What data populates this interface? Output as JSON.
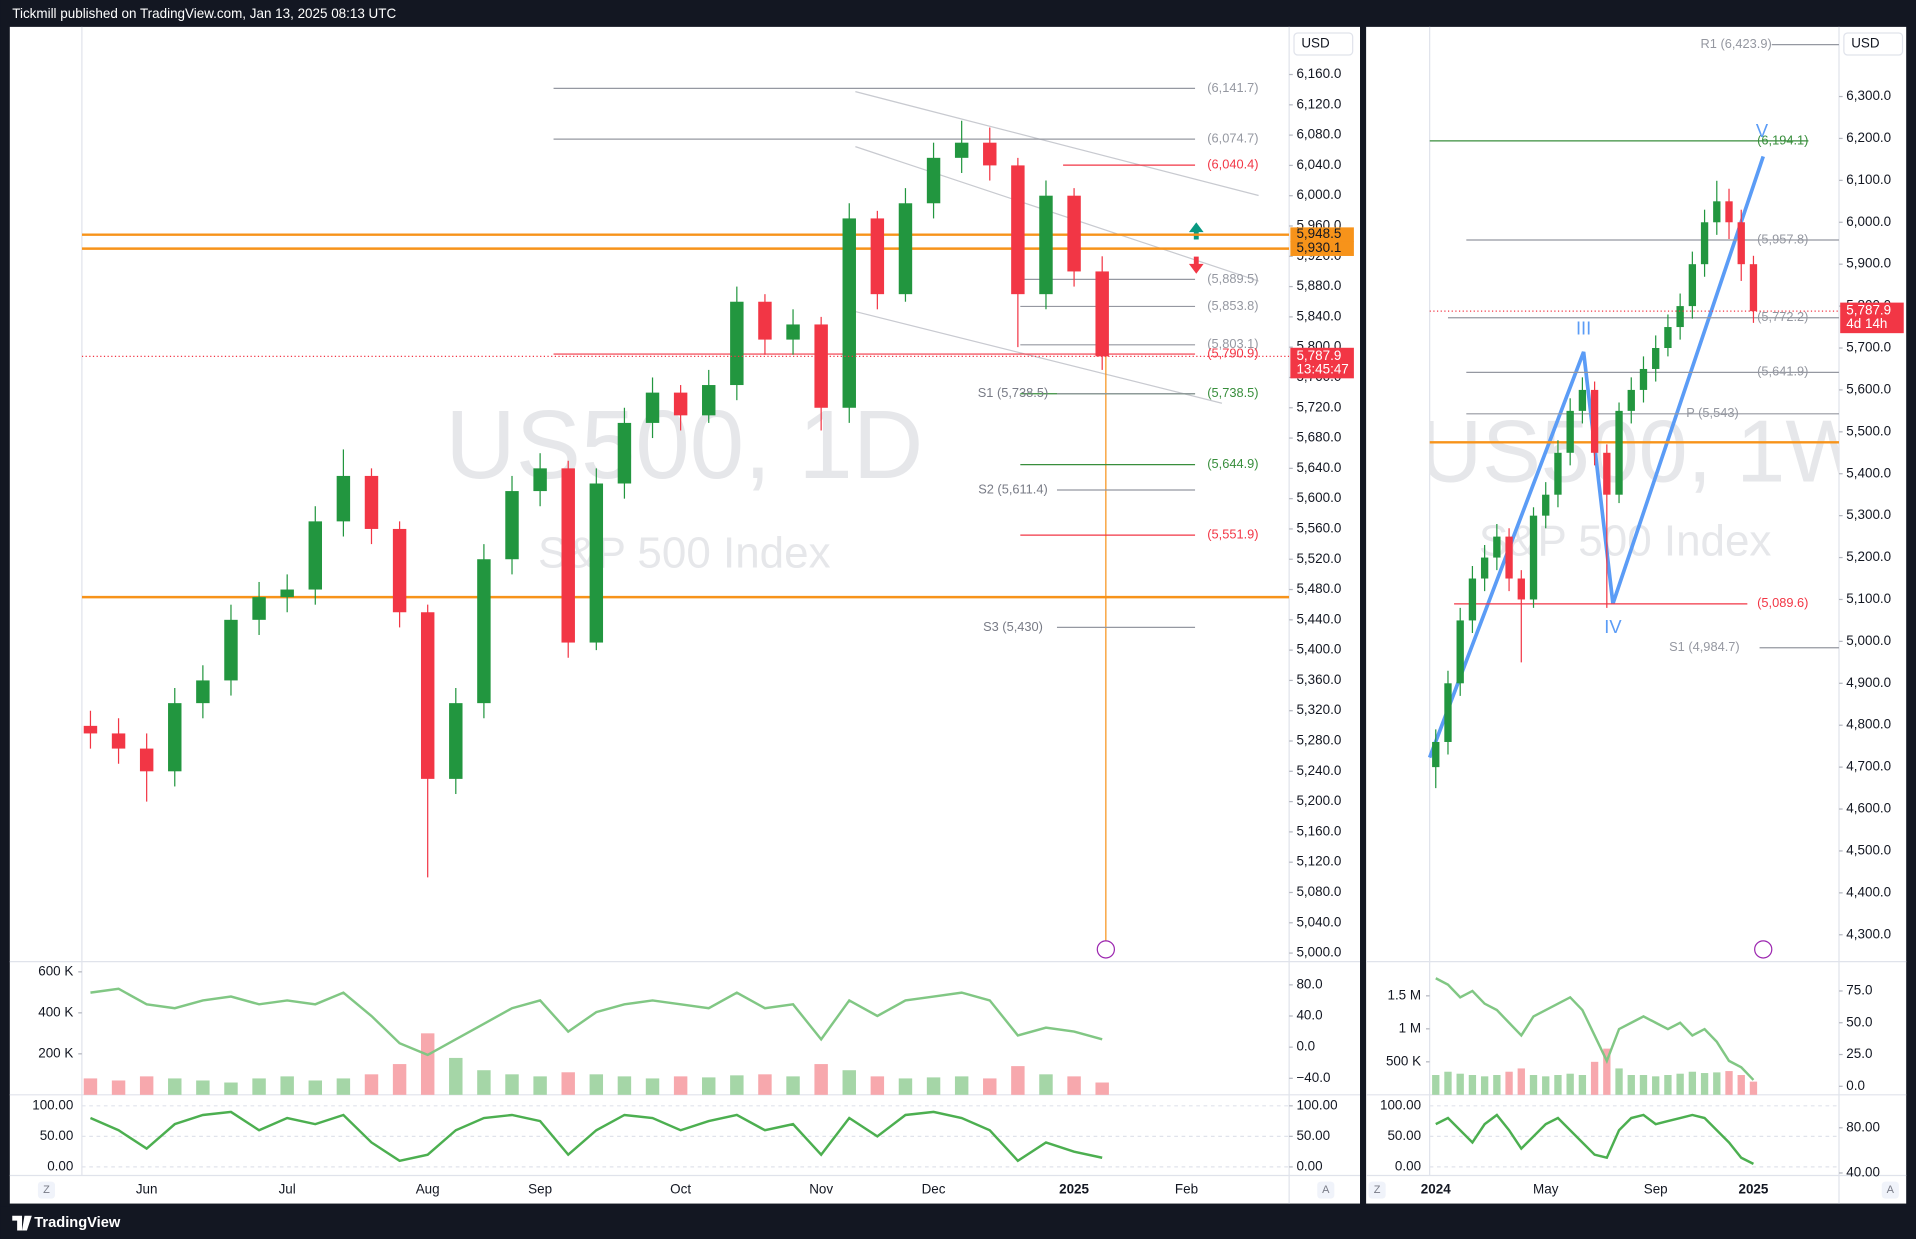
{
  "page": {
    "header": "Tickmill published on TradingView.com, Jan 13, 2025 08:13 UTC",
    "footer": "TradingView",
    "buttons": [
      "Z",
      "A"
    ]
  },
  "chart_data": [
    {
      "type": "candlestick",
      "title": "US500, 1D",
      "subtitle": "S&P 500 Index",
      "currency": "USD",
      "up_color": "#22963f",
      "down_color": "#f23645",
      "categories": [
        null,
        null,
        "Jun",
        null,
        null,
        null,
        null,
        "Jul",
        null,
        null,
        null,
        null,
        "Aug",
        null,
        null,
        null,
        "Sep",
        null,
        null,
        null,
        null,
        "Oct",
        null,
        null,
        null,
        null,
        "Nov",
        null,
        null,
        null,
        "Dec",
        null,
        null,
        null,
        null,
        "2025",
        null,
        null,
        null,
        "Feb",
        null,
        null,
        null
      ],
      "open": [
        5300,
        5290,
        5270,
        5240,
        5330,
        5360,
        5440,
        5470,
        5480,
        5570,
        5630,
        5560,
        5450,
        5230,
        5330,
        5520,
        5610,
        5640,
        5410,
        5620,
        5700,
        5740,
        5710,
        5750,
        5860,
        5810,
        5830,
        5720,
        5970,
        5870,
        5990,
        6050,
        6070,
        6040,
        5870,
        6000,
        5900,
        null,
        null,
        null,
        null,
        null,
        null
      ],
      "high": [
        5320,
        5310,
        5290,
        5350,
        5380,
        5460,
        5490,
        5500,
        5590,
        5665,
        5640,
        5570,
        5460,
        5350,
        5540,
        5630,
        5660,
        5650,
        5640,
        5720,
        5760,
        5750,
        5770,
        5880,
        5870,
        5850,
        5840,
        5990,
        5980,
        6010,
        6070,
        6099,
        6090,
        6050,
        6020,
        6010,
        5920,
        null,
        null,
        null,
        null,
        null,
        null
      ],
      "low": [
        5270,
        5250,
        5200,
        5220,
        5310,
        5340,
        5420,
        5450,
        5460,
        5550,
        5540,
        5430,
        5100,
        5210,
        5310,
        5500,
        5590,
        5390,
        5400,
        5600,
        5680,
        5690,
        5700,
        5730,
        5790,
        5790,
        5690,
        5700,
        5850,
        5860,
        5970,
        6030,
        6020,
        5800,
        5850,
        5880,
        5770,
        null,
        null,
        null,
        null,
        null,
        null
      ],
      "close": [
        5290,
        5270,
        5240,
        5330,
        5360,
        5440,
        5470,
        5480,
        5570,
        5630,
        5560,
        5450,
        5230,
        5330,
        5520,
        5610,
        5640,
        5410,
        5620,
        5700,
        5740,
        5710,
        5750,
        5860,
        5810,
        5830,
        5720,
        5970,
        5870,
        5990,
        6050,
        6070,
        6040,
        5870,
        6000,
        5900,
        5787.9,
        null,
        null,
        null,
        null,
        null,
        null
      ],
      "ylim": [
        4988.7,
        6222.9
      ],
      "yticks": [
        {
          "value": 5000,
          "label": "5,000.0"
        },
        {
          "value": 5040,
          "label": "5,040.0"
        },
        {
          "value": 5080,
          "label": "5,080.0"
        },
        {
          "value": 5120,
          "label": "5,120.0"
        },
        {
          "value": 5160,
          "label": "5,160.0"
        },
        {
          "value": 5200,
          "label": "5,200.0"
        },
        {
          "value": 5240,
          "label": "5,240.0"
        },
        {
          "value": 5280,
          "label": "5,280.0"
        },
        {
          "value": 5320,
          "label": "5,320.0"
        },
        {
          "value": 5360,
          "label": "5,360.0"
        },
        {
          "value": 5400,
          "label": "5,400.0"
        },
        {
          "value": 5440,
          "label": "5,440.0"
        },
        {
          "value": 5480,
          "label": "5,480.0"
        },
        {
          "value": 5520,
          "label": "5,520.0"
        },
        {
          "value": 5560,
          "label": "5,560.0"
        },
        {
          "value": 5600,
          "label": "5,600.0"
        },
        {
          "value": 5640,
          "label": "5,640.0"
        },
        {
          "value": 5680,
          "label": "5,680.0"
        },
        {
          "value": 5720,
          "label": "5,720.0"
        },
        {
          "value": 5760,
          "label": "5,760.0"
        },
        {
          "value": 5800,
          "label": "5,800.0"
        },
        {
          "value": 5840,
          "label": "5,840.0"
        },
        {
          "value": 5880,
          "label": "5,880.0"
        },
        {
          "value": 5920,
          "label": "5,920.0"
        },
        {
          "value": 5960,
          "label": "5,960.0"
        },
        {
          "value": 6000,
          "label": "6,000.0"
        },
        {
          "value": 6040,
          "label": "6,040.0"
        },
        {
          "value": 6080,
          "label": "6,080.0"
        },
        {
          "value": 6120,
          "label": "6,120.0"
        },
        {
          "value": 6160,
          "label": "6,160.0"
        }
      ],
      "levels": [
        {
          "value": 6141.7,
          "label": "(6,141.7)",
          "color": "#9598a1"
        },
        {
          "value": 6074.7,
          "label": "(6,074.7)",
          "color": "#9598a1"
        },
        {
          "value": 6040.4,
          "label": "(6,040.4)",
          "color": "#f23645"
        },
        {
          "value": 5889.5,
          "label": "(5,889.5)",
          "color": "#9598a1"
        },
        {
          "value": 5853.8,
          "label": "(5,853.8)",
          "color": "#9598a1"
        },
        {
          "value": 5803.1,
          "label": "(5,803.1)",
          "color": "#9598a1"
        },
        {
          "value": 5790.9,
          "label": "(5,790.9)",
          "color": "#f23645"
        },
        {
          "value": 5738.5,
          "label": "(5,738.5)",
          "color": "#388e3c"
        },
        {
          "value": 5644.9,
          "label": "(5,644.9)",
          "color": "#388e3c"
        },
        {
          "value": 5551.9,
          "label": "(5,551.9)",
          "color": "#f23645"
        }
      ],
      "pivots": [
        {
          "value": 5738.5,
          "label": "S1 (5,738.5)"
        },
        {
          "value": 5611.4,
          "label": "S2 (5,611.4)"
        },
        {
          "value": 5430,
          "label": "S3 (5,430)"
        }
      ],
      "hlines": [
        {
          "value": 5948.5,
          "color": "#f7931a"
        },
        {
          "value": 5930.1,
          "color": "#f7931a"
        },
        {
          "value": 5470,
          "color": "#f7931a"
        }
      ],
      "tags": [
        {
          "value": 5948.5,
          "label": "5,948.5",
          "color": "#f7931a"
        },
        {
          "value": 5930.1,
          "label": "5,930.1",
          "color": "#f7931a"
        }
      ],
      "price_tag": {
        "value": 5787.9,
        "label": "5,787.9",
        "countdown": "13:45:47",
        "color": "#f23645"
      },
      "oscillator": {
        "color": "#81c784",
        "values": [
          70,
          75,
          55,
          50,
          60,
          65,
          55,
          60,
          55,
          70,
          40,
          5,
          -10,
          10,
          30,
          50,
          60,
          20,
          45,
          55,
          60,
          55,
          50,
          70,
          50,
          55,
          10,
          60,
          40,
          60,
          65,
          70,
          60,
          15,
          25,
          20,
          10,
          null,
          null,
          null,
          null,
          null,
          null
        ],
        "ylim": [
          -61.2,
          105.1
        ],
        "yticks": [
          {
            "value": 80,
            "label": "80.0"
          },
          {
            "value": 40,
            "label": "40.0"
          },
          {
            "value": 0,
            "label": "0.0"
          },
          {
            "value": -40,
            "label": "−40.0"
          }
        ]
      },
      "volume": {
        "up_color": "#a5d6a7",
        "down_color": "#f7a8ad",
        "values": [
          80,
          70,
          90,
          80,
          70,
          60,
          80,
          90,
          70,
          80,
          100,
          150,
          300,
          180,
          120,
          100,
          90,
          110,
          100,
          90,
          80,
          90,
          85,
          95,
          100,
          90,
          150,
          120,
          90,
          80,
          85,
          90,
          80,
          140,
          100,
          90,
          60,
          null,
          null,
          null,
          null,
          null,
          null
        ],
        "ylim": [
          0,
          632
        ],
        "yticks": [
          {
            "value": 600,
            "label": "600 K"
          },
          {
            "value": 400,
            "label": "400 K"
          },
          {
            "value": 200,
            "label": "200 K"
          }
        ]
      },
      "stochastic": {
        "color": "#4caf50",
        "values": [
          80,
          60,
          30,
          70,
          85,
          90,
          60,
          80,
          70,
          85,
          40,
          10,
          20,
          60,
          80,
          85,
          75,
          20,
          60,
          85,
          80,
          60,
          75,
          85,
          60,
          70,
          20,
          80,
          50,
          85,
          90,
          80,
          60,
          10,
          40,
          25,
          15,
          null,
          null,
          null,
          null,
          null,
          null
        ],
        "ylim": [
          -14,
          114
        ],
        "yticks": [
          {
            "value": 100,
            "label": "100.00"
          },
          {
            "value": 50,
            "label": "50.00"
          },
          {
            "value": 0,
            "label": "0.00"
          }
        ],
        "y2lim": [
          -14,
          114
        ],
        "y2ticks": [
          {
            "value": 100,
            "label": "100.00"
          },
          {
            "value": 50,
            "label": "50.00"
          },
          {
            "value": 0,
            "label": "0.00"
          }
        ]
      }
    },
    {
      "type": "candlestick",
      "title": "US500, 1W",
      "subtitle": "S&P 500 Index",
      "currency": "USD",
      "up_color": "#22963f",
      "down_color": "#f23645",
      "categories": [
        "2024",
        null,
        null,
        null,
        null,
        null,
        null,
        null,
        null,
        "May",
        null,
        null,
        null,
        null,
        null,
        null,
        null,
        null,
        "Sep",
        null,
        null,
        null,
        null,
        null,
        null,
        null,
        "2025",
        null,
        null,
        null,
        null,
        null,
        null
      ],
      "open": [
        4700,
        4760,
        4900,
        5050,
        5150,
        5200,
        5250,
        5150,
        5100,
        5300,
        5350,
        5450,
        5550,
        5600,
        5450,
        5350,
        5550,
        5600,
        5650,
        5700,
        5750,
        5800,
        5900,
        6000,
        6050,
        6000,
        5900,
        null,
        null,
        null,
        null,
        null,
        null
      ],
      "high": [
        4790,
        4930,
        5080,
        5180,
        5230,
        5280,
        5270,
        5170,
        5320,
        5380,
        5480,
        5580,
        5630,
        5620,
        5470,
        5570,
        5630,
        5680,
        5730,
        5780,
        5830,
        5930,
        6030,
        6099,
        6080,
        6030,
        5920,
        null,
        null,
        null,
        null,
        null,
        null
      ],
      "low": [
        4650,
        4730,
        4870,
        5020,
        5120,
        5170,
        5120,
        4950,
        5080,
        5270,
        5320,
        5420,
        5520,
        5420,
        5080,
        5330,
        5520,
        5570,
        5620,
        5680,
        5720,
        5770,
        5870,
        5970,
        5960,
        5860,
        5760,
        null,
        null,
        null,
        null,
        null,
        null
      ],
      "close": [
        4760,
        4900,
        5050,
        5150,
        5200,
        5250,
        5150,
        5100,
        5300,
        5350,
        5450,
        5550,
        5600,
        5450,
        5350,
        5550,
        5600,
        5650,
        5700,
        5750,
        5800,
        5900,
        6000,
        6050,
        6000,
        5900,
        5787.9,
        null,
        null,
        null,
        null,
        null,
        null
      ],
      "ylim": [
        4235.9,
        6466.2
      ],
      "yticks": [
        {
          "value": 4300,
          "label": "4,300.0"
        },
        {
          "value": 4400,
          "label": "4,400.0"
        },
        {
          "value": 4500,
          "label": "4,500.0"
        },
        {
          "value": 4600,
          "label": "4,600.0"
        },
        {
          "value": 4700,
          "label": "4,700.0"
        },
        {
          "value": 4800,
          "label": "4,800.0"
        },
        {
          "value": 4900,
          "label": "4,900.0"
        },
        {
          "value": 5000,
          "label": "5,000.0"
        },
        {
          "value": 5100,
          "label": "5,100.0"
        },
        {
          "value": 5200,
          "label": "5,200.0"
        },
        {
          "value": 5300,
          "label": "5,300.0"
        },
        {
          "value": 5400,
          "label": "5,400.0"
        },
        {
          "value": 5500,
          "label": "5,500.0"
        },
        {
          "value": 5600,
          "label": "5,600.0"
        },
        {
          "value": 5700,
          "label": "5,700.0"
        },
        {
          "value": 5800,
          "label": "5,800.0"
        },
        {
          "value": 5900,
          "label": "5,900.0"
        },
        {
          "value": 6000,
          "label": "6,000.0"
        },
        {
          "value": 6100,
          "label": "6,100.0"
        },
        {
          "value": 6200,
          "label": "6,200.0"
        },
        {
          "value": 6300,
          "label": "6,300.0"
        }
      ],
      "levels": [
        {
          "value": 6423.9,
          "label": "R1 (6,423.9)",
          "color": "#9598a1"
        },
        {
          "value": 6194.1,
          "label": "(6,194.1)",
          "color": "#388e3c"
        },
        {
          "value": 5957.8,
          "label": "(5,957.8)",
          "color": "#9598a1"
        },
        {
          "value": 5772.2,
          "label": "(5,772.2)",
          "color": "#9598a1"
        },
        {
          "value": 5641.9,
          "label": "(5,641.9)",
          "color": "#9598a1"
        },
        {
          "value": 5543,
          "label": "P (5,543)",
          "color": "#9598a1"
        },
        {
          "value": 5089.6,
          "label": "(5,089.6)",
          "color": "#f23645"
        },
        {
          "value": 4984.7,
          "label": "S1 (4,984.7)",
          "color": "#9598a1"
        }
      ],
      "waves": [
        "III",
        "IV",
        "V"
      ],
      "hlines": [
        {
          "value": 5475,
          "color": "#f7931a"
        }
      ],
      "price_tag": {
        "value": 5787.9,
        "label": "5,787.9",
        "countdown": "4d 14h",
        "color": "#f23645"
      },
      "oscillator": {
        "color": "#81c784",
        "values": [
          85,
          80,
          70,
          75,
          65,
          60,
          50,
          40,
          55,
          60,
          65,
          70,
          60,
          40,
          20,
          45,
          50,
          55,
          50,
          45,
          50,
          40,
          45,
          35,
          20,
          15,
          5,
          null,
          null,
          null,
          null,
          null,
          null
        ],
        "ylim": [
          -6.7,
          95.2
        ],
        "yticks": [
          {
            "value": 75,
            "label": "75.0"
          },
          {
            "value": 50,
            "label": "50.0"
          },
          {
            "value": 25,
            "label": "25.0"
          },
          {
            "value": 0,
            "label": "0.0"
          }
        ]
      },
      "volume": {
        "up_color": "#a5d6a7",
        "down_color": "#f7a8ad",
        "values": [
          300,
          350,
          320,
          300,
          280,
          300,
          350,
          400,
          300,
          280,
          300,
          320,
          300,
          500,
          700,
          400,
          300,
          300,
          280,
          300,
          320,
          350,
          330,
          340,
          360,
          300,
          200,
          null,
          null,
          null,
          null,
          null,
          null
        ],
        "ylim": [
          0,
          1963
        ],
        "yticks": [
          {
            "value": 1500,
            "label": "1.5 M"
          },
          {
            "value": 1000,
            "label": "1 M"
          },
          {
            "value": 500,
            "label": "500 K"
          }
        ]
      },
      "stochastic": {
        "color": "#4caf50",
        "values": [
          70,
          80,
          60,
          40,
          70,
          85,
          60,
          30,
          50,
          70,
          80,
          60,
          40,
          20,
          15,
          60,
          80,
          85,
          70,
          75,
          80,
          85,
          80,
          60,
          40,
          15,
          5,
          null,
          null,
          null,
          null,
          null,
          null
        ],
        "ylim": [
          -14,
          114
        ],
        "yticks": [
          {
            "value": 100,
            "label": "100.00"
          },
          {
            "value": 50,
            "label": "50.00"
          },
          {
            "value": 0,
            "label": "0.00"
          }
        ],
        "y2lim": [
          37.8,
          107
        ],
        "y2ticks": [
          {
            "value": 80,
            "label": "80.00"
          },
          {
            "value": 40,
            "label": "40.00"
          }
        ]
      }
    }
  ]
}
